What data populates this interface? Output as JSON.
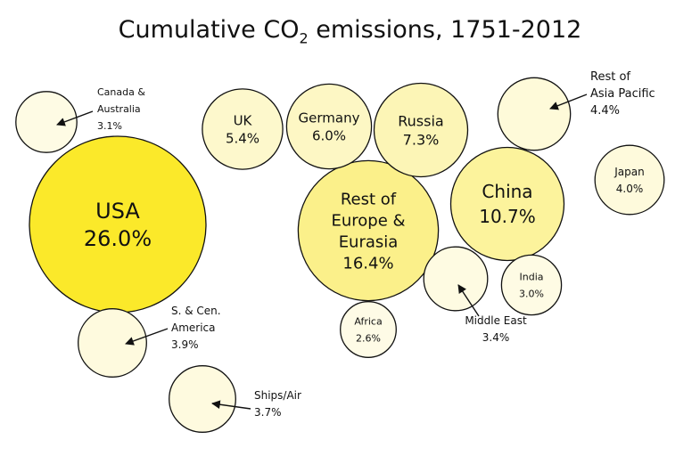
{
  "chart_data": {
    "type": "bubble",
    "title": {
      "prefix": "Cumulative CO",
      "sub": "2",
      "suffix": " emissions, 1751-2012"
    },
    "colors": {
      "stroke": "#111111",
      "arrow": "#111111"
    },
    "regions": [
      {
        "name": "USA",
        "value_label": "26.0%",
        "value": 26.0,
        "color": "#fbe92a"
      },
      {
        "name": "Rest of\nEurope &\nEurasia",
        "value_label": "16.4%",
        "value": 16.4,
        "color": "#fbf08a"
      },
      {
        "name": "China",
        "value_label": "10.7%",
        "value": 10.7,
        "color": "#fcf39c"
      },
      {
        "name": "Russia",
        "value_label": "7.3%",
        "value": 7.3,
        "color": "#fcf5b6"
      },
      {
        "name": "Germany",
        "value_label": "6.0%",
        "value": 6.0,
        "color": "#fdf7c4"
      },
      {
        "name": "UK",
        "value_label": "5.4%",
        "value": 5.4,
        "color": "#fdf8cc"
      },
      {
        "name": "Rest of\nAsia Pacific",
        "value_label": "4.4%",
        "value": 4.4,
        "color": "#fefad9"
      },
      {
        "name": "Japan",
        "value_label": "4.0%",
        "value": 4.0,
        "color": "#fefadc"
      },
      {
        "name": "S. & Cen.\nAmerica",
        "value_label": "3.9%",
        "value": 3.9,
        "color": "#fefade"
      },
      {
        "name": "Ships/Air",
        "value_label": "3.7%",
        "value": 3.7,
        "color": "#fefadf"
      },
      {
        "name": "Middle East",
        "value_label": "3.4%",
        "value": 3.4,
        "color": "#fefbe2"
      },
      {
        "name": "Canada &\nAustralia",
        "value_label": "3.1%",
        "value": 3.1,
        "color": "#fefbe4"
      },
      {
        "name": "India",
        "value_label": "3.0%",
        "value": 3.0,
        "color": "#fefbe4"
      },
      {
        "name": "Africa",
        "value_label": "2.6%",
        "value": 2.6,
        "color": "#fefbe6"
      }
    ]
  }
}
